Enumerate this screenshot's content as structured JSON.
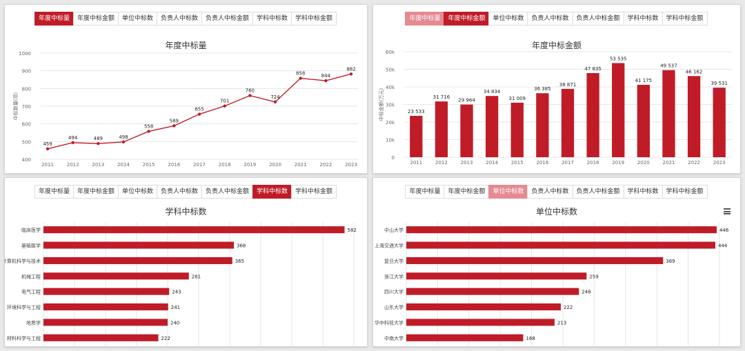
{
  "colors": {
    "accent": "#c01c28",
    "accent_hover": "#e58a92",
    "grid": "#e6e6e6",
    "text": "#333333"
  },
  "tabs": [
    "年度中标量",
    "年度中标金额",
    "单位中标数",
    "负责人中标数",
    "负责人中标金额",
    "学科中标数",
    "学科中标金额"
  ],
  "panels": {
    "p1": {
      "active": 0,
      "hover": -1
    },
    "p2": {
      "active": 1,
      "hover": 0
    },
    "p3": {
      "active": 5,
      "hover": -1
    },
    "p4": {
      "active": -1,
      "hover": 2
    }
  },
  "toolbar": {
    "menu_icon": "hamburger-menu-icon"
  },
  "chart_data": [
    {
      "type": "line",
      "title": "年度中标量",
      "ylabel": "中标数量(项)",
      "categories": [
        "2011",
        "2012",
        "2013",
        "2014",
        "2015",
        "2016",
        "2017",
        "2018",
        "2019",
        "2020",
        "2021",
        "2022",
        "2023"
      ],
      "values": [
        459,
        494,
        489,
        498,
        558,
        589,
        655,
        701,
        760,
        724,
        858,
        844,
        882
      ],
      "ylim": [
        400,
        1000
      ],
      "yticks": [
        "400",
        "500",
        "600",
        "700",
        "800",
        "900",
        "1000"
      ]
    },
    {
      "type": "bar",
      "title": "年度中标金额",
      "ylabel": "中标金额(万元)",
      "categories": [
        "2011",
        "2012",
        "2013",
        "2014",
        "2015",
        "2016",
        "2017",
        "2018",
        "2019",
        "2020",
        "2021",
        "2022",
        "2023"
      ],
      "values": [
        23533,
        31716,
        29964,
        34834,
        31009,
        36385,
        38871,
        47835,
        53535,
        41175,
        49537,
        46162,
        39531
      ],
      "labels": [
        "23 533",
        "31 716",
        "29 964",
        "34 834",
        "31 009",
        "36 385",
        "38 871",
        "47 835",
        "53 535",
        "41 175",
        "49 537",
        "46 162",
        "39 531"
      ],
      "ylim": [
        0,
        60000
      ],
      "yticks": [
        "0",
        "10k",
        "20k",
        "30k",
        "40k",
        "50k",
        "60k"
      ]
    },
    {
      "type": "bar",
      "orientation": "horizontal",
      "title": "学科中标数",
      "categories": [
        "临床医学",
        "基础医学",
        "计算机科学与技术",
        "机械工程",
        "电气工程",
        "环境科学与工程",
        "地质学",
        "材料科学与工程"
      ],
      "values": [
        582,
        368,
        365,
        281,
        243,
        241,
        240,
        222
      ],
      "xlim": [
        0,
        600
      ]
    },
    {
      "type": "bar",
      "orientation": "horizontal",
      "title": "单位中标数",
      "categories": [
        "中山大学",
        "上海交通大学",
        "复旦大学",
        "浙江大学",
        "四川大学",
        "山东大学",
        "华中科技大学",
        "中南大学"
      ],
      "values": [
        446,
        444,
        369,
        259,
        248,
        222,
        213,
        168
      ],
      "xlim": [
        0,
        450
      ]
    }
  ]
}
